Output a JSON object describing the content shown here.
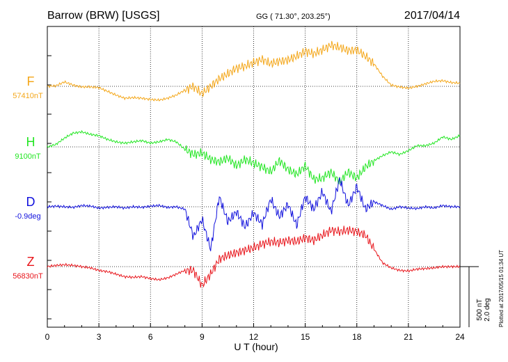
{
  "header": {
    "station": "Barrow (BRW)  [USGS]",
    "coords": "GG ( 71.30°, 203.25°)",
    "date": "2017/04/14"
  },
  "footer": {
    "plotted": "Plotted at 2017/05/15 01:34  UT"
  },
  "scale": {
    "nt": "500 nT",
    "deg": "2.0 deg"
  },
  "chart_data": {
    "type": "line",
    "xlabel": "U T (hour)",
    "xlim": [
      0,
      24
    ],
    "xticks": [
      0,
      3,
      6,
      9,
      12,
      15,
      18,
      21,
      24
    ],
    "grid": true,
    "series": [
      {
        "name": "F",
        "baseline": "57410nT",
        "color": "#f4a71a",
        "x": [
          0,
          0.5,
          1,
          1.5,
          2,
          2.5,
          3,
          3.5,
          4,
          4.5,
          5,
          5.5,
          6,
          6.5,
          7,
          7.5,
          8,
          8.5,
          9,
          9.5,
          10,
          10.5,
          11,
          11.5,
          12,
          12.5,
          13,
          13.5,
          14,
          14.5,
          15,
          15.5,
          16,
          16.5,
          17,
          17.5,
          18,
          18.5,
          19,
          19.5,
          20,
          20.5,
          21,
          21.5,
          22,
          22.5,
          23,
          23.5,
          24
        ],
        "values": [
          0,
          5,
          35,
          10,
          -5,
          -5,
          -10,
          -40,
          -70,
          -95,
          -90,
          -95,
          -105,
          -110,
          -95,
          -70,
          -30,
          0,
          -60,
          0,
          60,
          100,
          145,
          160,
          190,
          215,
          180,
          200,
          210,
          240,
          280,
          260,
          290,
          330,
          310,
          285,
          290,
          240,
          180,
          80,
          10,
          -5,
          -15,
          0,
          20,
          40,
          45,
          30,
          25
        ]
      },
      {
        "name": "H",
        "baseline": "9100nT",
        "color": "#22e622",
        "x": [
          0,
          0.5,
          1,
          1.5,
          2,
          2.5,
          3,
          3.5,
          4,
          4.5,
          5,
          5.5,
          6,
          6.5,
          7,
          7.5,
          8,
          8.5,
          9,
          9.5,
          10,
          10.5,
          11,
          11.5,
          12,
          12.5,
          13,
          13.5,
          14,
          14.5,
          15,
          15.5,
          16,
          16.5,
          17,
          17.5,
          18,
          18.5,
          19,
          19.5,
          20,
          20.5,
          21,
          21.5,
          22,
          22.5,
          23,
          23.5,
          24
        ],
        "values": [
          0,
          20,
          70,
          110,
          120,
          100,
          90,
          60,
          40,
          30,
          40,
          50,
          30,
          40,
          60,
          40,
          -20,
          -60,
          -50,
          -100,
          -120,
          -90,
          -150,
          -100,
          -130,
          -160,
          -200,
          -110,
          -180,
          -220,
          -150,
          -260,
          -250,
          -200,
          -280,
          -200,
          -250,
          -160,
          -110,
          -70,
          -40,
          -60,
          -30,
          10,
          10,
          30,
          80,
          60,
          90
        ]
      },
      {
        "name": "D",
        "baseline": "-0.9deg",
        "color": "#1010dd",
        "x": [
          0,
          0.5,
          1,
          1.5,
          2,
          2.5,
          3,
          3.5,
          4,
          4.5,
          5,
          5.5,
          6,
          6.5,
          7,
          7.5,
          8,
          8.5,
          9,
          9.5,
          10,
          10.5,
          11,
          11.5,
          12,
          12.5,
          13,
          13.5,
          14,
          14.5,
          15,
          15.5,
          16,
          16.5,
          17,
          17.5,
          18,
          18.5,
          19,
          19.5,
          20,
          20.5,
          21,
          21.5,
          22,
          22.5,
          23,
          23.5,
          24
        ],
        "values": [
          0,
          5,
          0,
          -5,
          10,
          5,
          -10,
          -5,
          0,
          -10,
          0,
          -5,
          5,
          10,
          -5,
          0,
          -20,
          -240,
          -100,
          -340,
          80,
          -120,
          -40,
          -160,
          -50,
          -140,
          60,
          -80,
          20,
          -150,
          80,
          -20,
          120,
          -40,
          220,
          10,
          160,
          -20,
          40,
          10,
          -20,
          0,
          -10,
          -15,
          0,
          -10,
          10,
          0,
          0
        ]
      },
      {
        "name": "Z",
        "baseline": "56830nT",
        "color": "#e8141a",
        "x": [
          0,
          0.5,
          1,
          1.5,
          2,
          2.5,
          3,
          3.5,
          4,
          4.5,
          5,
          5.5,
          6,
          6.5,
          7,
          7.5,
          8,
          8.5,
          9,
          9.5,
          10,
          10.5,
          11,
          11.5,
          12,
          12.5,
          13,
          13.5,
          14,
          14.5,
          15,
          15.5,
          16,
          16.5,
          17,
          17.5,
          18,
          18.5,
          19,
          19.5,
          20,
          20.5,
          21,
          21.5,
          22,
          22.5,
          23,
          23.5,
          24
        ],
        "values": [
          0,
          10,
          15,
          10,
          0,
          -10,
          -30,
          -40,
          -60,
          -80,
          -85,
          -80,
          -95,
          -105,
          -90,
          -60,
          -30,
          -30,
          -150,
          -60,
          60,
          90,
          110,
          130,
          150,
          180,
          200,
          190,
          210,
          200,
          230,
          210,
          250,
          290,
          280,
          290,
          280,
          250,
          140,
          30,
          -10,
          -30,
          -35,
          -20,
          -15,
          -10,
          0,
          0,
          0
        ]
      }
    ]
  }
}
